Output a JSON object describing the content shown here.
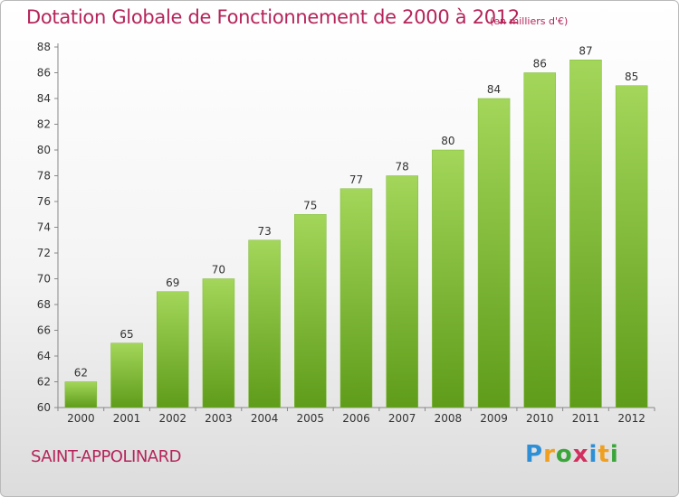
{
  "title": "Dotation Globale de Fonctionnement de 2000 à 2012",
  "unit_note": "(en milliers d'€)",
  "commune": "SAINT-APPOLINARD",
  "brand": {
    "letters": [
      "P",
      "r",
      "o",
      "x",
      "i",
      "t",
      "i"
    ],
    "colors": [
      "#2e8fd6",
      "#f0a020",
      "#3aa63a",
      "#d22f5f",
      "#2e8fd6",
      "#f0a020",
      "#3aa63a"
    ]
  },
  "colors": {
    "bar_top": "#a3d65a",
    "bar_bottom": "#5f9c1a",
    "text": "#333333",
    "accent": "#b5245a"
  },
  "chart_data": {
    "type": "bar",
    "categories": [
      "2000",
      "2001",
      "2002",
      "2003",
      "2004",
      "2005",
      "2006",
      "2007",
      "2008",
      "2009",
      "2010",
      "2011",
      "2012"
    ],
    "values": [
      62,
      65,
      69,
      70,
      73,
      75,
      77,
      78,
      80,
      84,
      86,
      87,
      85
    ],
    "title": "Dotation Globale de Fonctionnement de 2000 à 2012",
    "ylim": [
      60,
      88
    ],
    "yticks": [
      60,
      62,
      64,
      66,
      68,
      70,
      72,
      74,
      76,
      78,
      80,
      82,
      84,
      86,
      88
    ],
    "grid": false,
    "data_labels": true
  }
}
